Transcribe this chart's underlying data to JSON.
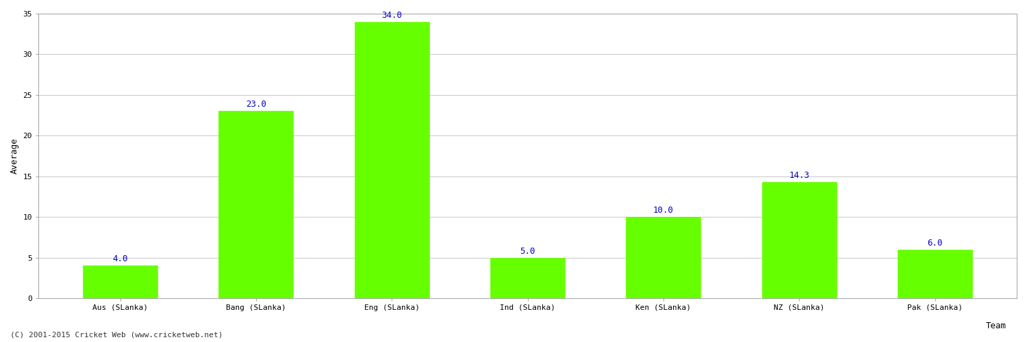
{
  "categories": [
    "Aus (SLanka)",
    "Bang (SLanka)",
    "Eng (SLanka)",
    "Ind (SLanka)",
    "Ken (SLanka)",
    "NZ (SLanka)",
    "Pak (SLanka)"
  ],
  "values": [
    4.0,
    23.0,
    34.0,
    5.0,
    10.0,
    14.3,
    6.0
  ],
  "bar_color": "#66ff00",
  "bar_edge_color": "#66ff00",
  "label_color": "#0000cc",
  "label_fontsize": 9,
  "ylabel": "Average",
  "ylim": [
    0,
    35
  ],
  "yticks": [
    0,
    5,
    10,
    15,
    20,
    25,
    30,
    35
  ],
  "grid_color": "#cccccc",
  "background_color": "#ffffff",
  "footer_text": "(C) 2001-2015 Cricket Web (www.cricketweb.net)",
  "footer_fontsize": 8,
  "footer_color": "#333333",
  "team_label": "Team",
  "axis_label_fontsize": 9,
  "tick_fontsize": 8,
  "bar_width": 0.55,
  "fig_width": 15.0,
  "fig_height": 5.0
}
